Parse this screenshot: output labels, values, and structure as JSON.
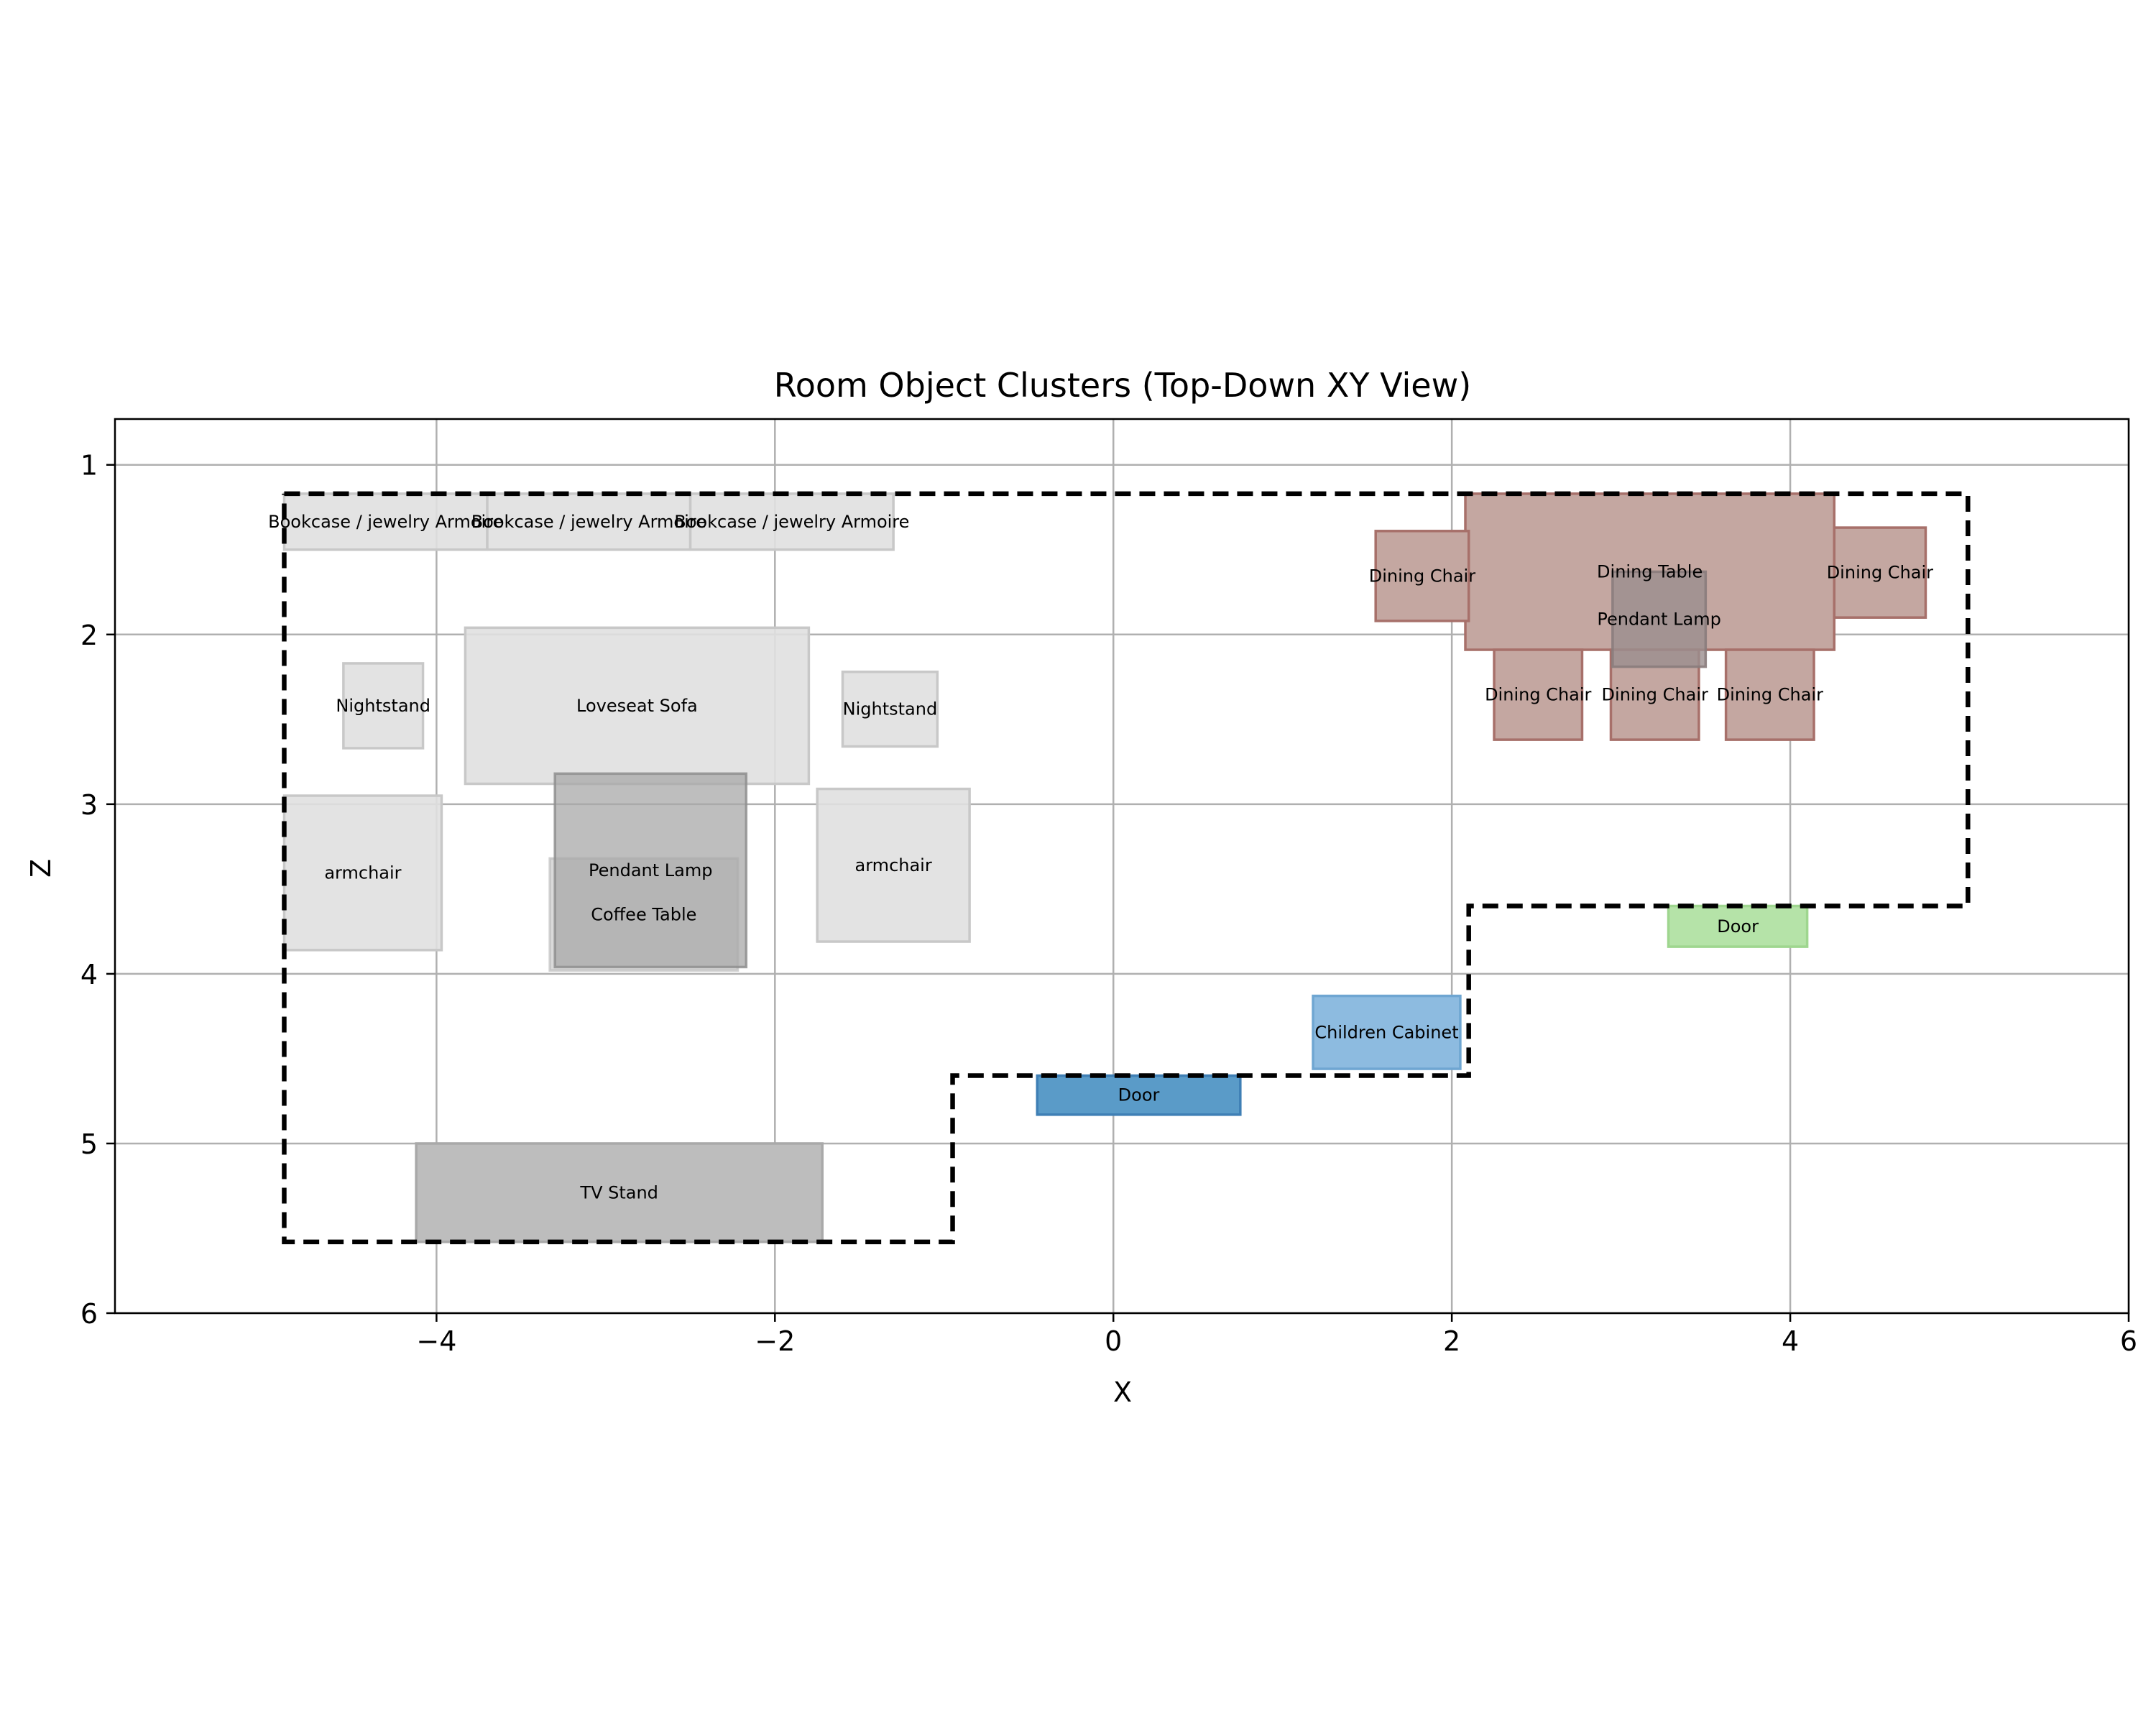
{
  "chart_data": {
    "type": "floorplan",
    "title": "Room Object Clusters (Top-Down XY View)",
    "xlabel": "X",
    "ylabel": "Z",
    "xlim": [
      -5.9,
      6.0
    ],
    "ylim": [
      6.0,
      0.73
    ],
    "y_inverted": true,
    "grid": true,
    "xticks": [
      -4,
      -2,
      0,
      2,
      4,
      6
    ],
    "xtick_labels": [
      "−4",
      "−2",
      "0",
      "2",
      "4",
      "6"
    ],
    "yticks": [
      1,
      2,
      3,
      4,
      5,
      6
    ],
    "ytick_labels": [
      "1",
      "2",
      "3",
      "4",
      "5",
      "6"
    ],
    "room_outline": [
      [
        -4.9,
        1.17
      ],
      [
        5.05,
        1.17
      ],
      [
        5.05,
        3.6
      ],
      [
        2.1,
        3.6
      ],
      [
        2.1,
        4.6
      ],
      [
        -0.95,
        4.6
      ],
      [
        -0.95,
        5.58
      ],
      [
        -4.9,
        5.58
      ],
      [
        -4.9,
        1.17
      ]
    ],
    "objects": [
      {
        "label": "Bookcase / jewelry Armoire",
        "x0": -4.9,
        "x1": -3.7,
        "z0": 1.17,
        "z1": 1.5,
        "color": "#e0e0e0",
        "edge": "#c8c8c8",
        "opacity": 0.9
      },
      {
        "label": "Bookcase / jewelry Armoire",
        "x0": -3.7,
        "x1": -2.5,
        "z0": 1.17,
        "z1": 1.5,
        "color": "#e0e0e0",
        "edge": "#c8c8c8",
        "opacity": 0.9
      },
      {
        "label": "Bookcase / jewelry Armoire",
        "x0": -2.5,
        "x1": -1.3,
        "z0": 1.17,
        "z1": 1.5,
        "color": "#e0e0e0",
        "edge": "#c8c8c8",
        "opacity": 0.9
      },
      {
        "label": "Nightstand",
        "x0": -4.55,
        "x1": -4.08,
        "z0": 2.17,
        "z1": 2.67,
        "color": "#e0e0e0",
        "edge": "#c8c8c8",
        "opacity": 0.9
      },
      {
        "label": "Loveseat Sofa",
        "x0": -3.83,
        "x1": -1.8,
        "z0": 1.96,
        "z1": 2.88,
        "color": "#e0e0e0",
        "edge": "#c8c8c8",
        "opacity": 0.9
      },
      {
        "label": "Nightstand",
        "x0": -1.6,
        "x1": -1.04,
        "z0": 2.22,
        "z1": 2.66,
        "color": "#e0e0e0",
        "edge": "#c8c8c8",
        "opacity": 0.9
      },
      {
        "label": "armchair",
        "x0": -4.9,
        "x1": -3.97,
        "z0": 2.95,
        "z1": 3.86,
        "color": "#e0e0e0",
        "edge": "#c8c8c8",
        "opacity": 0.9
      },
      {
        "label": "armchair",
        "x0": -1.75,
        "x1": -0.85,
        "z0": 2.91,
        "z1": 3.81,
        "color": "#e0e0e0",
        "edge": "#c8c8c8",
        "opacity": 0.9
      },
      {
        "label": "Coffee Table",
        "x0": -3.33,
        "x1": -2.22,
        "z0": 3.32,
        "z1": 3.98,
        "color": "#c2c2c2",
        "edge": "#bdbdbd",
        "opacity": 0.6
      },
      {
        "label": "Pendant Lamp",
        "x0": -3.3,
        "x1": -2.17,
        "z0": 2.82,
        "z1": 3.96,
        "color": "#a8a8a8",
        "edge": "#8f8f8f",
        "opacity": 0.75
      },
      {
        "label": "TV Stand",
        "x0": -4.12,
        "x1": -1.72,
        "z0": 5.0,
        "z1": 5.58,
        "color": "#bdbdbd",
        "edge": "#a9a9a9",
        "opacity": 1.0
      },
      {
        "label": "Door",
        "x0": -0.45,
        "x1": 0.75,
        "z0": 4.6,
        "z1": 4.83,
        "color": "#5a9bc8",
        "edge": "#3f7fb5",
        "opacity": 1.0
      },
      {
        "label": "Children Cabinet",
        "x0": 1.18,
        "x1": 2.05,
        "z0": 4.13,
        "z1": 4.56,
        "color": "#8dbbe0",
        "edge": "#6fa6d2",
        "opacity": 1.0
      },
      {
        "label": "Door",
        "x0": 3.28,
        "x1": 4.1,
        "z0": 3.6,
        "z1": 3.84,
        "color": "#b5e3a8",
        "edge": "#9fd68f",
        "opacity": 1.0
      },
      {
        "label": "Dining Table",
        "x0": 2.08,
        "x1": 4.26,
        "z0": 1.17,
        "z1": 2.09,
        "color": "#c4a7a1",
        "edge": "#a7706a",
        "opacity": 1.0
      },
      {
        "label": "Dining Chair",
        "x0": 1.55,
        "x1": 2.1,
        "z0": 1.39,
        "z1": 1.92,
        "color": "#c4a7a1",
        "edge": "#a7706a",
        "opacity": 1.0
      },
      {
        "label": "Dining Chair",
        "x0": 4.26,
        "x1": 4.8,
        "z0": 1.37,
        "z1": 1.9,
        "color": "#c4a7a1",
        "edge": "#a7706a",
        "opacity": 1.0
      },
      {
        "label": "Dining Chair",
        "x0": 2.25,
        "x1": 2.77,
        "z0": 2.09,
        "z1": 2.62,
        "color": "#c4a7a1",
        "edge": "#a7706a",
        "opacity": 1.0
      },
      {
        "label": "Dining Chair",
        "x0": 2.94,
        "x1": 3.46,
        "z0": 2.09,
        "z1": 2.62,
        "color": "#c4a7a1",
        "edge": "#a7706a",
        "opacity": 1.0
      },
      {
        "label": "Dining Chair",
        "x0": 3.62,
        "x1": 4.14,
        "z0": 2.09,
        "z1": 2.62,
        "color": "#c4a7a1",
        "edge": "#a7706a",
        "opacity": 1.0
      },
      {
        "label": "Pendant Lamp",
        "x0": 2.95,
        "x1": 3.5,
        "z0": 1.63,
        "z1": 2.19,
        "color": "#9b8f8f",
        "edge": "#8a7c7c",
        "opacity": 0.8
      }
    ]
  }
}
